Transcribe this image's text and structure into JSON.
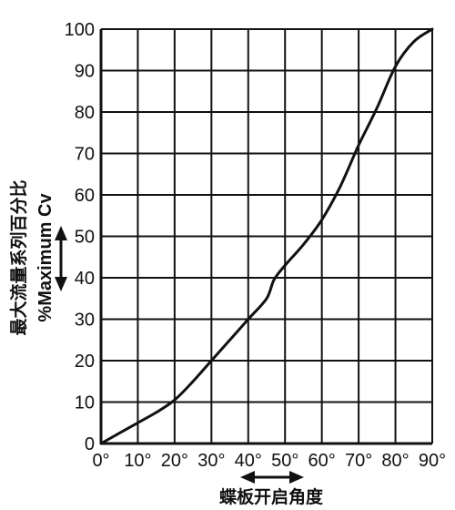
{
  "chart_data": {
    "type": "line",
    "x_tick_labels": [
      "0°",
      "10°",
      "20°",
      "30°",
      "40°",
      "50°",
      "60°",
      "70°",
      "80°",
      "90°"
    ],
    "y_tick_labels": [
      "0",
      "10",
      "20",
      "30",
      "40",
      "50",
      "60",
      "70",
      "80",
      "90",
      "100"
    ],
    "xlabel": "蝶板开启角度",
    "ylabel": "最大流量系列百分比",
    "ylabel_secondary": "%Maximum Cv",
    "xlim": [
      0,
      90
    ],
    "ylim": [
      0,
      100
    ],
    "grid": true,
    "series": [
      {
        "x": [
          0,
          5,
          10,
          15,
          20,
          25,
          30,
          35,
          40,
          45,
          47,
          50,
          55,
          60,
          65,
          70,
          75,
          80,
          85,
          90
        ],
        "y": [
          0,
          2.5,
          5,
          7.5,
          10.5,
          15,
          20,
          25,
          30,
          35,
          39.5,
          43,
          48,
          54,
          62,
          72,
          81,
          91,
          97,
          100
        ]
      }
    ]
  },
  "colors": {
    "line": "#111111",
    "grid": "#111111",
    "background": "#ffffff"
  }
}
